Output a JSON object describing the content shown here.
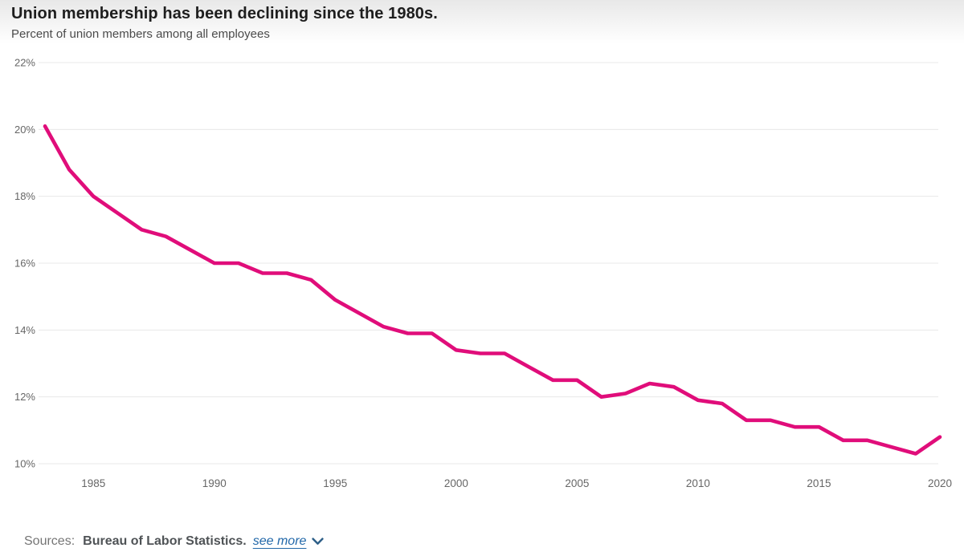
{
  "header": {
    "title": "Union membership has been declining since the 1980s.",
    "subtitle": "Percent of union members among all employees"
  },
  "footer": {
    "sources_label": "Sources:",
    "source_name": "Bureau of Labor Statistics.",
    "see_more_label": "see more",
    "see_more_icon": "chevron-down-icon"
  },
  "colors": {
    "line": "#e00d7a",
    "gridline": "#e8e8e8",
    "axis_text": "#666666",
    "title_text": "#1e1e1e",
    "subtitle_text": "#4b4b4b",
    "sources_label_text": "#757575",
    "source_name_text": "#4f5356",
    "link_text": "#2268a9",
    "chevron": "#2e5f88",
    "top_fade": "#e8e8e8"
  },
  "chart_data": {
    "type": "line",
    "title": "Union membership has been declining since the 1980s.",
    "subtitle": "Percent of union members among all employees",
    "xlabel": "",
    "ylabel": "Percent of union members among all employees",
    "xlim": [
      1983,
      2020
    ],
    "ylim": [
      10,
      22
    ],
    "grid": "horizontal",
    "legend": "none",
    "x_ticks": [
      {
        "value": 1985,
        "label": "1985"
      },
      {
        "value": 1990,
        "label": "1990"
      },
      {
        "value": 1995,
        "label": "1995"
      },
      {
        "value": 2000,
        "label": "2000"
      },
      {
        "value": 2005,
        "label": "2005"
      },
      {
        "value": 2010,
        "label": "2010"
      },
      {
        "value": 2015,
        "label": "2015"
      },
      {
        "value": 2020,
        "label": "2020"
      }
    ],
    "y_ticks": [
      {
        "value": 22,
        "label": "22%"
      },
      {
        "value": 20,
        "label": "20%"
      },
      {
        "value": 18,
        "label": "18%"
      },
      {
        "value": 16,
        "label": "16%"
      },
      {
        "value": 14,
        "label": "14%"
      },
      {
        "value": 12,
        "label": "12%"
      },
      {
        "value": 10,
        "label": "10%"
      }
    ],
    "x": [
      1983,
      1984,
      1985,
      1986,
      1987,
      1988,
      1989,
      1990,
      1991,
      1992,
      1993,
      1994,
      1995,
      1996,
      1997,
      1998,
      1999,
      2000,
      2001,
      2002,
      2003,
      2004,
      2005,
      2006,
      2007,
      2008,
      2009,
      2010,
      2011,
      2012,
      2013,
      2014,
      2015,
      2016,
      2017,
      2018,
      2019,
      2020
    ],
    "series": [
      {
        "name": "Percent of union members among all employees",
        "color": "#e00d7a",
        "values": [
          20.1,
          18.8,
          18.0,
          17.5,
          17.0,
          16.8,
          16.4,
          16.0,
          16.0,
          15.7,
          15.7,
          15.5,
          14.9,
          14.5,
          14.1,
          13.9,
          13.9,
          13.4,
          13.3,
          13.3,
          12.9,
          12.5,
          12.5,
          12.0,
          12.1,
          12.4,
          12.3,
          11.9,
          11.8,
          11.3,
          11.3,
          11.1,
          11.1,
          10.7,
          10.7,
          10.5,
          10.3,
          10.8
        ]
      }
    ]
  }
}
